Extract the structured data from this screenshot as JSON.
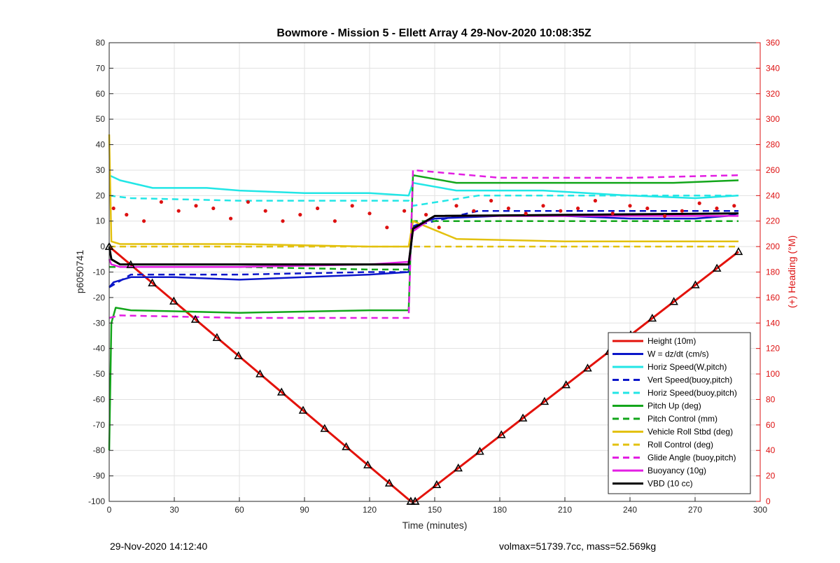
{
  "chart_data": {
    "type": "line",
    "title": "Bowmore - Mission 5 - Ellett Array 4 29-Nov-2020 10:08:35Z",
    "xlabel": "Time (minutes)",
    "ylabel": "p6050741",
    "y2label": "(+) Heading (°M)",
    "xlim": [
      0,
      300
    ],
    "ylim": [
      -100,
      80
    ],
    "y2lim": [
      0,
      360
    ],
    "xticks": [
      "0",
      "30",
      "60",
      "90",
      "120",
      "150",
      "180",
      "210",
      "240",
      "270",
      "300"
    ],
    "yticks": [
      "-100",
      "-90",
      "-80",
      "-70",
      "-60",
      "-50",
      "-40",
      "-30",
      "-20",
      "-10",
      "0",
      "10",
      "20",
      "30",
      "40",
      "50",
      "60",
      "70",
      "80"
    ],
    "y2ticks": [
      "0",
      "20",
      "40",
      "60",
      "80",
      "100",
      "120",
      "140",
      "160",
      "180",
      "200",
      "220",
      "240",
      "260",
      "280",
      "300",
      "320",
      "340",
      "360"
    ],
    "grid": true,
    "legend_position": "bottom-right",
    "colors": {
      "red": "#e3120b",
      "blue": "#0b16c9",
      "cyan": "#22e6e6",
      "green": "#13a61b",
      "yellow": "#e3c10f",
      "magenta": "#e31ee3",
      "black": "#000000",
      "heading": "#dd1111"
    },
    "legend": [
      {
        "name": "Height (10m)",
        "color": "#e3120b",
        "dash": false
      },
      {
        "name": "W = dz/dt (cm/s)",
        "color": "#0b16c9",
        "dash": false
      },
      {
        "name": "Horiz Speed(W,pitch)",
        "color": "#22e6e6",
        "dash": false
      },
      {
        "name": "Vert Speed(buoy,pitch)",
        "color": "#0b16c9",
        "dash": true
      },
      {
        "name": "Horiz Speed(buoy,pitch)",
        "color": "#22e6e6",
        "dash": true
      },
      {
        "name": "Pitch Up (deg)",
        "color": "#13a61b",
        "dash": false
      },
      {
        "name": "Pitch Control (mm)",
        "color": "#13a61b",
        "dash": true
      },
      {
        "name": "Vehicle Roll Stbd (deg)",
        "color": "#e3c10f",
        "dash": false
      },
      {
        "name": "Roll Control (deg)",
        "color": "#e3c10f",
        "dash": true
      },
      {
        "name": "Glide Angle (buoy,pitch)",
        "color": "#e31ee3",
        "dash": true
      },
      {
        "name": "Buoyancy (10g)",
        "color": "#e31ee3",
        "dash": false
      },
      {
        "name": "VBD (10 cc)",
        "color": "#000000",
        "dash": false
      }
    ],
    "series": [
      {
        "name": "Height (10m)",
        "axis": "left",
        "x": [
          0,
          139,
          141,
          290
        ],
        "y": [
          0,
          -100,
          -100,
          -2
        ]
      },
      {
        "name": "W = dz/dt (cm/s)",
        "axis": "left",
        "x": [
          0,
          2,
          10,
          30,
          60,
          90,
          120,
          138,
          140,
          150,
          180,
          210,
          240,
          270,
          285,
          290
        ],
        "y": [
          -16,
          -14,
          -12,
          -12,
          -13,
          -12,
          -11,
          -10,
          8,
          11,
          12,
          12,
          11,
          11,
          12,
          13
        ]
      },
      {
        "name": "Horiz Speed(W,pitch)",
        "axis": "left",
        "x": [
          0,
          5,
          20,
          45,
          60,
          90,
          120,
          138,
          140,
          160,
          200,
          240,
          270,
          290
        ],
        "y": [
          28,
          26,
          23,
          23,
          22,
          21,
          21,
          20,
          25,
          22,
          22,
          20,
          19,
          20
        ]
      },
      {
        "name": "Vert Speed(buoy,pitch)",
        "axis": "left",
        "x": [
          0,
          10,
          60,
          120,
          138,
          140,
          170,
          210,
          250,
          290
        ],
        "y": [
          -16,
          -11,
          -11,
          -10,
          -10,
          8,
          14,
          14,
          14,
          14
        ]
      },
      {
        "name": "Horiz Speed(buoy,pitch)",
        "axis": "left",
        "x": [
          0,
          10,
          60,
          120,
          138,
          140,
          170,
          210,
          250,
          290
        ],
        "y": [
          20,
          19,
          18,
          18,
          18,
          16,
          20,
          20,
          20,
          20
        ]
      },
      {
        "name": "Pitch Up (deg)",
        "axis": "left",
        "x": [
          0,
          1,
          3,
          10,
          60,
          120,
          138,
          140,
          160,
          210,
          260,
          290
        ],
        "y": [
          -80,
          -30,
          -24,
          -25,
          -26,
          -25,
          -25,
          28,
          25,
          25,
          25,
          26
        ]
      },
      {
        "name": "Pitch Control (mm)",
        "axis": "left",
        "x": [
          0,
          5,
          60,
          120,
          138,
          140,
          180,
          240,
          290
        ],
        "y": [
          -8,
          -8,
          -8,
          -9,
          -9,
          10,
          10,
          10,
          10
        ]
      },
      {
        "name": "Vehicle Roll Stbd (deg)",
        "axis": "left",
        "x": [
          0,
          1,
          5,
          60,
          120,
          138,
          140,
          160,
          210,
          260,
          290
        ],
        "y": [
          44,
          2,
          1,
          1,
          0,
          0,
          10,
          3,
          2,
          2,
          2
        ]
      },
      {
        "name": "Roll Control (deg)",
        "axis": "left",
        "x": [
          0,
          60,
          120,
          138,
          140,
          290
        ],
        "y": [
          0,
          0,
          0,
          0,
          0,
          0
        ]
      },
      {
        "name": "Glide Angle (buoy,pitch)",
        "axis": "left",
        "x": [
          0,
          5,
          60,
          120,
          138,
          140,
          180,
          240,
          290
        ],
        "y": [
          -28,
          -27,
          -28,
          -28,
          -28,
          30,
          27,
          27,
          28
        ]
      },
      {
        "name": "Buoyancy (10g)",
        "axis": "left",
        "x": [
          0,
          1,
          5,
          60,
          120,
          138,
          140,
          150,
          290
        ],
        "y": [
          -5,
          -7,
          -8,
          -8,
          -7,
          -6,
          6,
          12,
          12
        ]
      },
      {
        "name": "VBD (10 cc)",
        "axis": "left",
        "x": [
          0,
          1,
          5,
          60,
          120,
          138,
          140,
          150,
          290
        ],
        "y": [
          0,
          -5,
          -7,
          -7,
          -7,
          -7,
          7,
          12,
          13
        ]
      },
      {
        "name": "Heading",
        "axis": "right",
        "x": [
          2,
          8,
          16,
          24,
          32,
          40,
          48,
          56,
          64,
          72,
          80,
          88,
          96,
          104,
          112,
          120,
          128,
          136,
          146,
          152,
          160,
          168,
          176,
          184,
          192,
          200,
          208,
          216,
          224,
          232,
          240,
          248,
          256,
          264,
          272,
          280,
          288
        ],
        "y": [
          230,
          225,
          220,
          235,
          228,
          232,
          230,
          222,
          235,
          228,
          220,
          225,
          230,
          220,
          232,
          226,
          215,
          228,
          225,
          215,
          232,
          228,
          236,
          230,
          226,
          232,
          228,
          230,
          236,
          226,
          232,
          230,
          224,
          228,
          234,
          230,
          232
        ]
      }
    ]
  },
  "footer": {
    "left": "29-Nov-2020 14:12:40",
    "right": "volmax=51739.7cc, mass=52.569kg"
  }
}
